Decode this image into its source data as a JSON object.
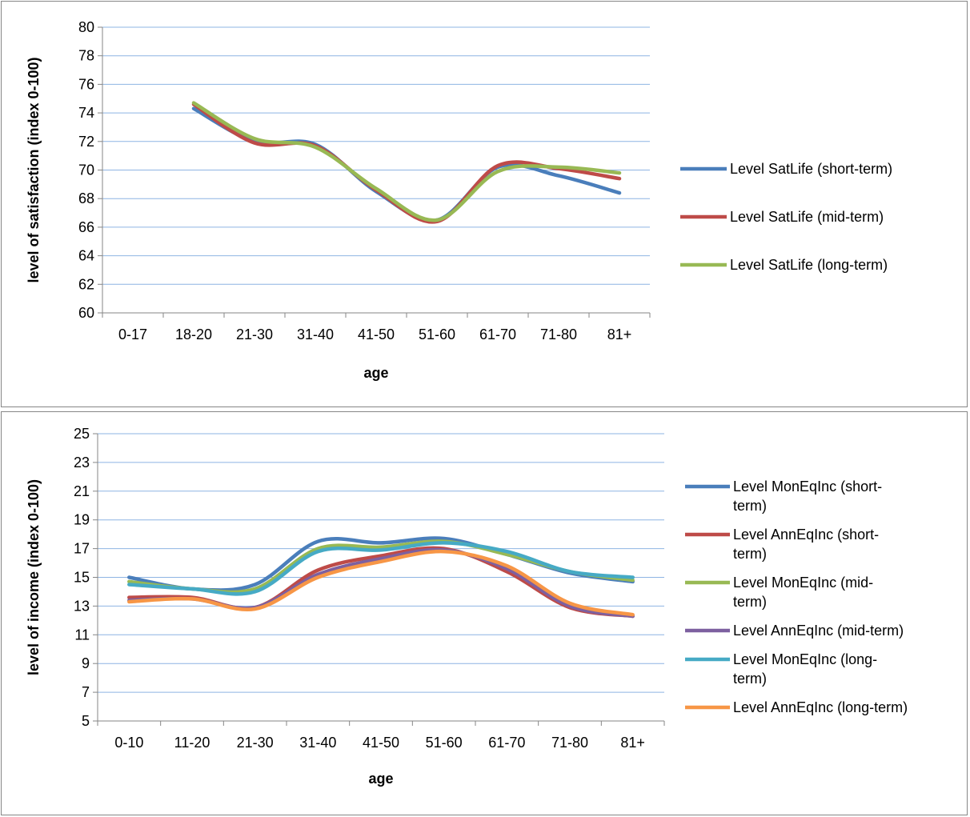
{
  "charts": [
    {
      "id": "top",
      "chart_data": {
        "type": "line",
        "categories": [
          "0-17",
          "18-20",
          "21-30",
          "31-40",
          "41-50",
          "51-60",
          "61-70",
          "71-80",
          "81+"
        ],
        "series": [
          {
            "name": "Level SatLife (short-term)",
            "color": "#4a7ebb",
            "values": [
              null,
              74.3,
              72.0,
              71.8,
              68.5,
              66.5,
              70.2,
              69.6,
              68.4
            ]
          },
          {
            "name": "Level SatLife (mid-term)",
            "color": "#be4b48",
            "values": [
              null,
              74.6,
              71.9,
              71.7,
              68.6,
              66.4,
              70.3,
              70.1,
              69.4
            ]
          },
          {
            "name": "Level SatLife (long-term)",
            "color": "#98b954",
            "values": [
              null,
              74.7,
              72.2,
              71.6,
              68.7,
              66.5,
              69.9,
              70.2,
              69.8
            ]
          }
        ],
        "title": "",
        "xlabel": "age",
        "ylabel": "level of satisfaction (index 0-100)",
        "ylim": [
          60,
          80
        ],
        "ytick_step": 2,
        "grid": true,
        "legend": "right"
      }
    },
    {
      "id": "bottom",
      "chart_data": {
        "type": "line",
        "categories": [
          "0-10",
          "11-20",
          "21-30",
          "31-40",
          "41-50",
          "51-60",
          "61-70",
          "71-80",
          "81+"
        ],
        "series": [
          {
            "name": "Level MonEqInc (short-term)",
            "legend_lines": [
              "Level MonEqInc (short-",
              "term)"
            ],
            "color": "#4a7ebb",
            "values": [
              15.0,
              14.2,
              14.5,
              17.5,
              17.4,
              17.7,
              16.6,
              15.3,
              14.7
            ]
          },
          {
            "name": "Level AnnEqInc (short-term)",
            "legend_lines": [
              "Level AnnEqInc (short-",
              "term)"
            ],
            "color": "#be4b48",
            "values": [
              13.6,
              13.6,
              12.9,
              15.5,
              16.5,
              17.0,
              15.4,
              12.9,
              12.3
            ]
          },
          {
            "name": "Level MonEqInc (mid-term)",
            "legend_lines": [
              "Level MonEqInc (mid-",
              "term)"
            ],
            "color": "#98b954",
            "values": [
              14.7,
              14.2,
              14.2,
              17.0,
              17.1,
              17.5,
              16.6,
              15.4,
              14.8
            ]
          },
          {
            "name": "Level AnnEqInc (mid-term)",
            "legend_lines": [
              "Level AnnEqInc (mid-term)"
            ],
            "color": "#7d60a0",
            "values": [
              13.4,
              13.5,
              12.9,
              15.2,
              16.3,
              16.9,
              15.6,
              13.0,
              12.3
            ]
          },
          {
            "name": "Level MonEqInc (long-term)",
            "legend_lines": [
              "Level MonEqInc (long-",
              "term)"
            ],
            "color": "#46aac5",
            "values": [
              14.5,
              14.2,
              14.0,
              16.8,
              16.9,
              17.4,
              16.8,
              15.4,
              15.0
            ]
          },
          {
            "name": "Level AnnEqInc (long-term)",
            "legend_lines": [
              "Level AnnEqInc (long-term)"
            ],
            "color": "#f79646",
            "values": [
              13.3,
              13.5,
              12.8,
              15.0,
              16.1,
              16.8,
              15.8,
              13.2,
              12.4
            ]
          }
        ],
        "title": "",
        "xlabel": "age",
        "ylabel": "level of income (index 0-100)",
        "ylim": [
          5,
          25
        ],
        "ytick_step": 2,
        "grid": true,
        "legend": "right"
      }
    }
  ]
}
